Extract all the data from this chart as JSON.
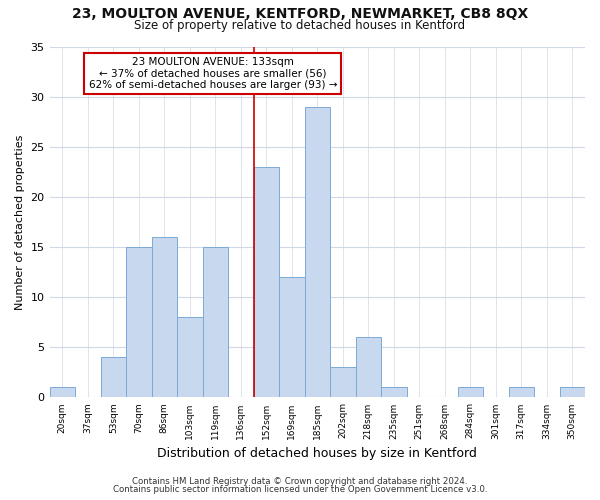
{
  "title": "23, MOULTON AVENUE, KENTFORD, NEWMARKET, CB8 8QX",
  "subtitle": "Size of property relative to detached houses in Kentford",
  "xlabel": "Distribution of detached houses by size in Kentford",
  "ylabel": "Number of detached properties",
  "footer_lines": [
    "Contains HM Land Registry data © Crown copyright and database right 2024.",
    "Contains public sector information licensed under the Open Government Licence v3.0."
  ],
  "bin_labels": [
    "20sqm",
    "37sqm",
    "53sqm",
    "70sqm",
    "86sqm",
    "103sqm",
    "119sqm",
    "136sqm",
    "152sqm",
    "169sqm",
    "185sqm",
    "202sqm",
    "218sqm",
    "235sqm",
    "251sqm",
    "268sqm",
    "284sqm",
    "301sqm",
    "317sqm",
    "334sqm",
    "350sqm"
  ],
  "bar_values": [
    1,
    0,
    4,
    15,
    16,
    8,
    15,
    0,
    23,
    12,
    29,
    3,
    6,
    1,
    0,
    0,
    1,
    0,
    1,
    0,
    1
  ],
  "bar_color": "#c8d8ee",
  "bar_edge_color": "#7baad6",
  "vline_x": 7.5,
  "vline_color": "#cc0000",
  "annotation_title": "23 MOULTON AVENUE: 133sqm",
  "annotation_line1": "← 37% of detached houses are smaller (56)",
  "annotation_line2": "62% of semi-detached houses are larger (93) →",
  "annotation_box_color": "#ffffff",
  "annotation_box_edge_color": "#cc0000",
  "ylim": [
    0,
    35
  ],
  "yticks": [
    0,
    5,
    10,
    15,
    20,
    25,
    30,
    35
  ],
  "background_color": "#ffffff",
  "plot_bg_color": "#ffffff",
  "grid_color": "#d0d8e8"
}
